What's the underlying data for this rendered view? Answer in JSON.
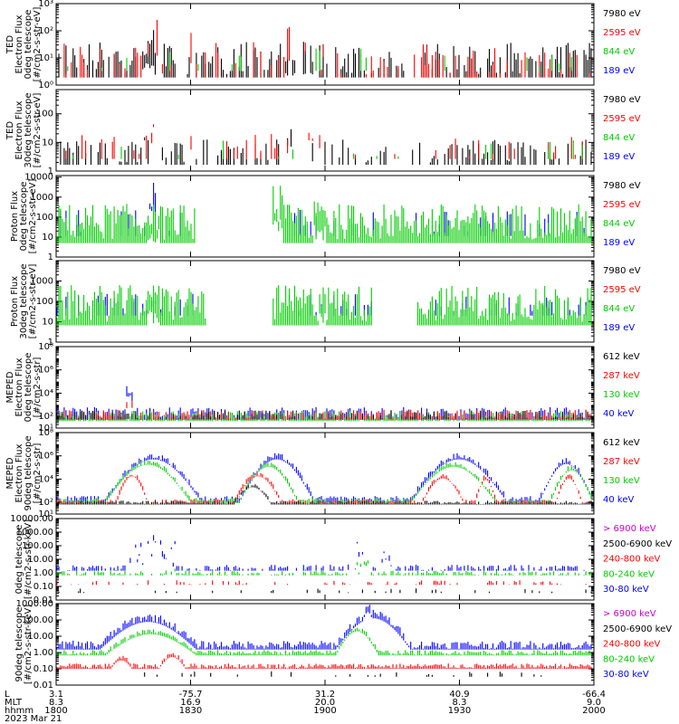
{
  "chart_data": [
    {
      "type": "line",
      "ylabel": [
        "TED",
        "Electron Flux",
        "0deg telescope",
        "[#/cm2-s-str-eV]"
      ],
      "yscale": "log",
      "ylim": [
        1,
        1000
      ],
      "yticks": [
        {
          "v": 1,
          "t": "10⁰"
        },
        {
          "v": 10,
          "t": "10¹"
        },
        {
          "v": 100,
          "t": "10²"
        },
        {
          "v": 1000,
          "t": "10³"
        }
      ],
      "yticks_top": [
        {
          "v": 1000,
          "t": "10³"
        }
      ],
      "legend": [
        {
          "label": "7980 eV",
          "color": "#000000"
        },
        {
          "label": "2595 eV",
          "color": "#ff0000"
        },
        {
          "label": "844 eV",
          "color": "#00cc00"
        },
        {
          "label": "189 eV",
          "color": "#0000ff"
        }
      ],
      "series": [
        {
          "color": "#000000",
          "density": 0.55,
          "bursts": [
            [
              0.16,
              0.19,
              35
            ],
            [
              0.42,
              0.48,
              15
            ]
          ],
          "base": 10,
          "spread": 1.2
        },
        {
          "color": "#ff0000",
          "density": 0.25,
          "bursts": [
            [
              0.16,
              0.2,
              80
            ],
            [
              0.23,
              0.25,
              60
            ],
            [
              0.43,
              0.5,
              90
            ]
          ],
          "base": 10,
          "spread": 1.2
        },
        {
          "color": "#00cc00",
          "density": 0.06,
          "bursts": [],
          "base": 10,
          "spread": 0.8
        }
      ]
    },
    {
      "type": "line",
      "ylabel": [
        "TED",
        "Electron Flux",
        "30deg telescope",
        "[#/cm2-s-str-eV]"
      ],
      "yscale": "log",
      "ylim": [
        1,
        700
      ],
      "yticks": [
        {
          "v": 1,
          "t": "1"
        },
        {
          "v": 10,
          "t": "10"
        },
        {
          "v": 100,
          "t": "100"
        }
      ],
      "legend": [
        {
          "label": "7980 eV",
          "color": "#000000"
        },
        {
          "label": "2595 eV",
          "color": "#ff0000"
        },
        {
          "label": "844 eV",
          "color": "#00cc00"
        },
        {
          "label": "189 eV",
          "color": "#0000ff"
        }
      ],
      "series": [
        {
          "color": "#000000",
          "density": 0.35,
          "bursts": [
            [
              0.16,
              0.2,
              40
            ],
            [
              0.43,
              0.49,
              40
            ]
          ],
          "base": 5,
          "spread": 0.8
        },
        {
          "color": "#ff0000",
          "density": 0.12,
          "bursts": [
            [
              0.16,
              0.21,
              150
            ],
            [
              0.23,
              0.25,
              150
            ],
            [
              0.43,
              0.49,
              150
            ]
          ],
          "base": 8,
          "spread": 0.8
        },
        {
          "color": "#00cc00",
          "density": 0.05,
          "bursts": [
            [
              0.18,
              0.2,
              30
            ],
            [
              0.45,
              0.47,
              30
            ]
          ],
          "base": 6,
          "spread": 0.6
        }
      ]
    },
    {
      "type": "line",
      "ylabel": [
        "Proton Flux",
        "0deg telescope",
        "[#/cm2-s-str-eV]"
      ],
      "yscale": "log",
      "ylim": [
        1,
        12000
      ],
      "yticks": [
        {
          "v": 1,
          "t": "1"
        },
        {
          "v": 10,
          "t": "10"
        },
        {
          "v": 100,
          "t": "100"
        },
        {
          "v": 1000,
          "t": "1000"
        },
        {
          "v": 10000,
          "t": "10000"
        }
      ],
      "legend": [
        {
          "label": "7980 eV",
          "color": "#000000"
        },
        {
          "label": "2595 eV",
          "color": "#ff0000"
        },
        {
          "label": "844 eV",
          "color": "#00cc00"
        },
        {
          "label": "189 eV",
          "color": "#0000ff"
        }
      ],
      "gaps": [
        [
          0.26,
          0.4
        ]
      ],
      "series": [
        {
          "color": "#0000ff",
          "density": 0.2,
          "bursts": [
            [
              0.17,
              0.19,
              1500
            ],
            [
              0.49,
              0.5,
              8000
            ],
            [
              0.43,
              0.44,
              500
            ]
          ],
          "base": 60,
          "spread": 1.2
        },
        {
          "color": "#00cc00",
          "density": 1.0,
          "bursts": [
            [
              0.17,
              0.19,
              400
            ],
            [
              0.4,
              0.42,
              900
            ],
            [
              0.48,
              0.5,
              500
            ]
          ],
          "base": 60,
          "spread": 1.8
        }
      ]
    },
    {
      "type": "line",
      "ylabel": [
        "Proton Flux",
        "30deg telescope",
        "[#/cm2-s-str-eV]"
      ],
      "yscale": "log",
      "ylim": [
        1,
        10000
      ],
      "yticks": [
        {
          "v": 1,
          "t": "1"
        },
        {
          "v": 10,
          "t": "10"
        },
        {
          "v": 100,
          "t": "100"
        },
        {
          "v": 1000,
          "t": "1000"
        }
      ],
      "legend": [
        {
          "label": "7980 eV",
          "color": "#000000"
        },
        {
          "label": "2595 eV",
          "color": "#ff0000"
        },
        {
          "label": "844 eV",
          "color": "#00cc00"
        },
        {
          "label": "189 eV",
          "color": "#0000ff"
        }
      ],
      "gaps": [
        [
          0.28,
          0.4
        ],
        [
          0.59,
          0.67
        ]
      ],
      "series": [
        {
          "color": "#0000ff",
          "density": 0.25,
          "bursts": [
            [
              0.17,
              0.19,
              2500
            ],
            [
              0.49,
              0.5,
              3000
            ],
            [
              0.43,
              0.44,
              800
            ]
          ],
          "base": 80,
          "spread": 1.0
        },
        {
          "color": "#00cc00",
          "density": 1.0,
          "bursts": [
            [
              0.17,
              0.19,
              600
            ],
            [
              0.49,
              0.5,
              700
            ]
          ],
          "base": 80,
          "spread": 1.8
        }
      ]
    },
    {
      "type": "line",
      "ylabel": [
        "MEPED",
        "Electron Flux",
        "0deg telescope",
        "[#/cm2-s-str]"
      ],
      "yscale": "log",
      "ylim": [
        10,
        100000000
      ],
      "yticks": [
        {
          "v": 10,
          "t": "10¹"
        },
        {
          "v": 100,
          "t": "10²"
        },
        {
          "v": 10000,
          "t": "10⁴"
        },
        {
          "v": 1000000,
          "t": "10⁶"
        },
        {
          "v": 100000000,
          "t": "10⁸"
        }
      ],
      "legend": [
        {
          "label": "612 keV",
          "color": "#000000"
        },
        {
          "label": "287 keV",
          "color": "#ff0000"
        },
        {
          "label": "130 keV",
          "color": "#00cc00"
        },
        {
          "label": "40 keV",
          "color": "#0000ff"
        }
      ],
      "series": [
        {
          "color": "#0000ff",
          "density": 0.9,
          "bursts": [
            [
              0.13,
              0.14,
              300000
            ]
          ],
          "base": 200,
          "spread": 1.0
        },
        {
          "color": "#00cc00",
          "density": 0.9,
          "bursts": [],
          "base": 120,
          "spread": 0.8
        },
        {
          "color": "#ff0000",
          "density": 0.7,
          "bursts": [
            [
              0.13,
              0.14,
              3000
            ]
          ],
          "base": 150,
          "spread": 0.8
        },
        {
          "color": "#000000",
          "density": 0.5,
          "bursts": [],
          "base": 150,
          "spread": 0.7
        }
      ]
    },
    {
      "type": "line",
      "ylabel": [
        "MEPED",
        "Electron Flux",
        "90deg telescope",
        "[#/cm2-s-str]"
      ],
      "yscale": "log",
      "ylim": [
        10,
        100000000
      ],
      "yticks": [
        {
          "v": 10,
          "t": "10¹"
        },
        {
          "v": 100,
          "t": "10²"
        },
        {
          "v": 10000,
          "t": "10⁴"
        },
        {
          "v": 1000000,
          "t": "10⁶"
        },
        {
          "v": 100000000,
          "t": "10⁸"
        }
      ],
      "legend": [
        {
          "label": "612 keV",
          "color": "#000000"
        },
        {
          "label": "287 keV",
          "color": "#ff0000"
        },
        {
          "label": "130 keV",
          "color": "#00cc00"
        },
        {
          "label": "40 keV",
          "color": "#0000ff"
        }
      ],
      "series": [
        {
          "color": "#0000ff",
          "humps": [
            [
              0.09,
              0.27,
              1000000
            ],
            [
              0.34,
              0.48,
              1000000
            ],
            [
              0.66,
              0.84,
              1000000
            ],
            [
              0.9,
              1.0,
              400000
            ]
          ],
          "base": 200,
          "spread": 0.5
        },
        {
          "color": "#00cc00",
          "humps": [
            [
              0.09,
              0.25,
              300000
            ],
            [
              0.34,
              0.45,
              200000
            ],
            [
              0.66,
              0.82,
              200000
            ],
            [
              0.92,
              1.0,
              100000
            ]
          ],
          "base": 150,
          "spread": 0.4
        },
        {
          "color": "#ff0000",
          "humps": [
            [
              0.11,
              0.17,
              30000
            ],
            [
              0.33,
              0.42,
              30000
            ],
            [
              0.68,
              0.76,
              20000
            ],
            [
              0.78,
              0.82,
              15000
            ],
            [
              0.93,
              0.98,
              20000
            ]
          ],
          "base": 120,
          "spread": 0.4
        },
        {
          "color": "#000000",
          "humps": [
            [
              0.33,
              0.4,
              3000
            ]
          ],
          "base": 100,
          "spread": 0.3
        }
      ]
    },
    {
      "type": "line",
      "ylabel": [
        "0deg telescope",
        "[#/cm2-s-str-keV]"
      ],
      "yscale": "log",
      "ylim": [
        0.01,
        10000
      ],
      "yticks": [
        {
          "v": 0.01,
          "t": "0.01"
        },
        {
          "v": 0.1,
          "t": "0.10"
        },
        {
          "v": 1,
          "t": "1.00"
        },
        {
          "v": 10,
          "t": "10.00"
        },
        {
          "v": 100,
          "t": "100.00"
        },
        {
          "v": 1000,
          "t": "1000.00"
        },
        {
          "v": 10000,
          "t": "10000.00"
        }
      ],
      "legend": [
        {
          "label": "> 6900 keV",
          "color": "#cc00cc"
        },
        {
          "label": "2500-6900 keV",
          "color": "#000000"
        },
        {
          "label": "240-800 keV",
          "color": "#ff0000"
        },
        {
          "label": "80-240 keV",
          "color": "#00cc00"
        },
        {
          "label": "30-80 keV",
          "color": "#0000ff"
        }
      ],
      "series": [
        {
          "color": "#0000ff",
          "density": 0.6,
          "bursts": [
            [
              0.13,
              0.16,
              200
            ],
            [
              0.17,
              0.22,
              700
            ],
            [
              0.54,
              0.58,
              500
            ],
            [
              0.6,
              0.63,
              60
            ]
          ],
          "base": 2.5,
          "spread": 0.4
        },
        {
          "color": "#00cc00",
          "density": 0.6,
          "bursts": [
            [
              0.2,
              0.22,
              10
            ],
            [
              0.55,
              0.58,
              8
            ]
          ],
          "base": 1.0,
          "spread": 0.3
        },
        {
          "color": "#ff0000",
          "density": 0.2,
          "bursts": [],
          "base": 0.2,
          "spread": 0.3
        },
        {
          "color": "#000000",
          "density": 0.12,
          "bursts": [],
          "base": 0.05,
          "spread": 0.3
        }
      ]
    },
    {
      "type": "line",
      "ylabel": [
        "90deg telescope",
        "[#/cm2-s-str-keV]"
      ],
      "yscale": "log",
      "ylim": [
        0.01,
        1000
      ],
      "yticks": [
        {
          "v": 0.01,
          "t": "0.01"
        },
        {
          "v": 0.1,
          "t": "0.10"
        },
        {
          "v": 1,
          "t": "1.00"
        },
        {
          "v": 10,
          "t": "10.00"
        },
        {
          "v": 100,
          "t": "100.00"
        },
        {
          "v": 1000,
          "t": "1000.00"
        }
      ],
      "legend": [
        {
          "label": "> 6900 keV",
          "color": "#cc00cc"
        },
        {
          "label": "2500-6900 keV",
          "color": "#000000"
        },
        {
          "label": "240-800 keV",
          "color": "#ff0000"
        },
        {
          "label": "80-240 keV",
          "color": "#00cc00"
        },
        {
          "label": "30-80 keV",
          "color": "#0000ff"
        }
      ],
      "series": [
        {
          "color": "#0000ff",
          "humps": [
            [
              0.08,
              0.26,
              150
            ],
            [
              0.52,
              0.66,
              250
            ],
            [
              0.56,
              0.6,
              600
            ]
          ],
          "base": 3,
          "spread": 0.5
        },
        {
          "color": "#00cc00",
          "humps": [
            [
              0.09,
              0.26,
              20
            ],
            [
              0.52,
              0.6,
              30
            ]
          ],
          "base": 1.0,
          "spread": 0.3
        },
        {
          "color": "#ff0000",
          "humps": [
            [
              0.1,
              0.14,
              0.5
            ],
            [
              0.19,
              0.24,
              0.8
            ]
          ],
          "base": 0.15,
          "spread": 0.3
        },
        {
          "color": "#000000",
          "density": 0.1,
          "base": 0.05,
          "spread": 0.3
        }
      ]
    }
  ],
  "xaxis": {
    "rows": [
      {
        "label": "L",
        "values": [
          "3.1",
          "-75.7",
          "31.2",
          "40.9",
          "-66.4"
        ]
      },
      {
        "label": "MLT",
        "values": [
          "8.3",
          "16.9",
          "20.0",
          "8.3",
          "9.0"
        ]
      },
      {
        "label": "hhmm",
        "values": [
          "1800",
          "1830",
          "1900",
          "1930",
          "2000"
        ]
      }
    ],
    "date": "2023 Mar 21"
  }
}
